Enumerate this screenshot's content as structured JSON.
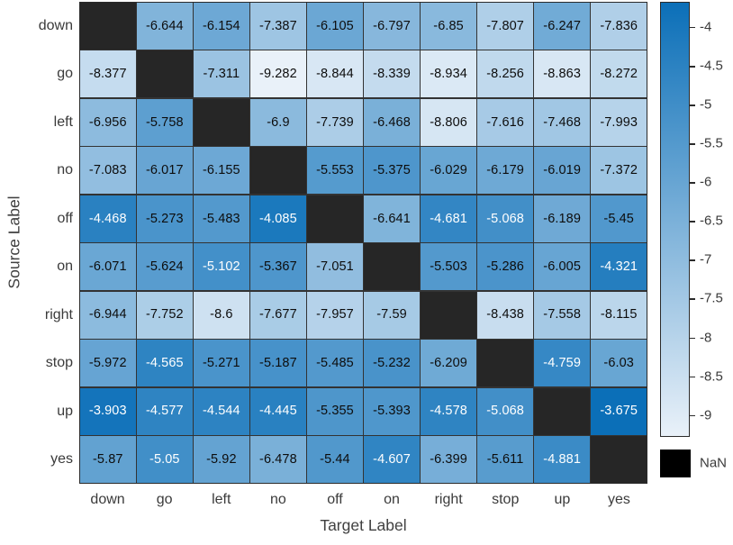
{
  "figure": {
    "nan_label": "NaN"
  },
  "chart_data": {
    "type": "heatmap",
    "title": "",
    "xlabel": "Target Label",
    "ylabel": "Source Label",
    "x_categories": [
      "down",
      "go",
      "left",
      "no",
      "off",
      "on",
      "right",
      "stop",
      "up",
      "yes"
    ],
    "y_categories": [
      "down",
      "go",
      "left",
      "no",
      "off",
      "on",
      "right",
      "stop",
      "up",
      "yes"
    ],
    "values": [
      [
        null,
        -6.644,
        -6.154,
        -7.387,
        -6.105,
        -6.797,
        -6.85,
        -7.807,
        -6.247,
        -7.836
      ],
      [
        -8.377,
        null,
        -7.311,
        -9.282,
        -8.844,
        -8.339,
        -8.934,
        -8.256,
        -8.863,
        -8.272
      ],
      [
        -6.956,
        -5.758,
        null,
        -6.9,
        -7.739,
        -6.468,
        -8.806,
        -7.616,
        -7.468,
        -7.993
      ],
      [
        -7.083,
        -6.017,
        -6.155,
        null,
        -5.553,
        -5.375,
        -6.029,
        -6.179,
        -6.019,
        -7.372
      ],
      [
        -4.468,
        -5.273,
        -5.483,
        -4.085,
        null,
        -6.641,
        -4.681,
        -5.068,
        -6.189,
        -5.45
      ],
      [
        -6.071,
        -5.624,
        -5.102,
        -5.367,
        -7.051,
        null,
        -5.503,
        -5.286,
        -6.005,
        -4.321
      ],
      [
        -6.944,
        -7.752,
        -8.6,
        -7.677,
        -7.957,
        -7.59,
        null,
        -8.438,
        -7.558,
        -8.115
      ],
      [
        -5.972,
        -4.565,
        -5.271,
        -5.187,
        -5.485,
        -5.232,
        -6.209,
        null,
        -4.759,
        -6.03
      ],
      [
        -3.903,
        -4.577,
        -4.544,
        -4.445,
        -5.355,
        -5.393,
        -4.578,
        -5.068,
        null,
        -3.675
      ],
      [
        -5.87,
        -5.05,
        -5.92,
        -6.478,
        -5.44,
        -4.607,
        -6.399,
        -5.611,
        -4.881,
        null
      ]
    ],
    "nan_cells": "diagonal",
    "grid": true,
    "legend_position": "right",
    "color_scale": {
      "min": -9.282,
      "max": -3.675,
      "min_color": "#e9f1f9",
      "max_color": "#0b6fb8",
      "nan_color": "#262626",
      "nan_legend_color": "#000000",
      "colorbar_ticks": [
        -4,
        -4.5,
        -5,
        -5.5,
        -6,
        -6.5,
        -7,
        -7.5,
        -8,
        -8.5,
        -9
      ]
    },
    "white_text_above": -5.15
  }
}
